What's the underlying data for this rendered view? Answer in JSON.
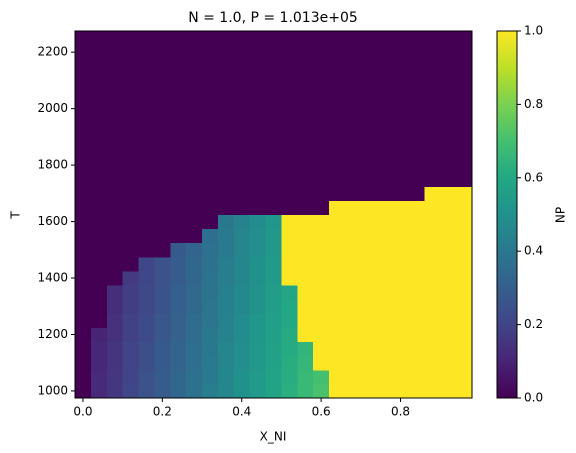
{
  "chart_data": {
    "type": "heatmap",
    "title": "N = 1.0, P = 1.013e+05",
    "x_label": "X_NI",
    "y_label": "T",
    "colorbar_label": "NP",
    "colormap": "viridis",
    "x": [
      0,
      0.04,
      0.08,
      0.12,
      0.16,
      0.2,
      0.24,
      0.28,
      0.32,
      0.36,
      0.4,
      0.44,
      0.48,
      0.52,
      0.56,
      0.6,
      0.64,
      0.68,
      0.72,
      0.76,
      0.8,
      0.84,
      0.88,
      0.92,
      0.96
    ],
    "y": [
      1000,
      1050,
      1100,
      1150,
      1200,
      1250,
      1300,
      1350,
      1400,
      1450,
      1500,
      1550,
      1600,
      1650,
      1700,
      1750,
      1800,
      1850,
      1900,
      1950,
      2000,
      2050,
      2100,
      2150,
      2200,
      2250
    ],
    "z": [
      [
        0,
        0.12,
        0.16,
        0.21,
        0.25,
        0.29,
        0.33,
        0.37,
        0.42,
        0.46,
        0.5,
        0.54,
        0.58,
        0.63,
        0.67,
        0.71,
        1,
        1,
        1,
        1,
        1,
        1,
        1,
        1,
        1
      ],
      [
        0,
        0.12,
        0.16,
        0.2,
        0.25,
        0.29,
        0.33,
        0.37,
        0.41,
        0.46,
        0.5,
        0.54,
        0.58,
        0.62,
        0.67,
        0.7,
        1,
        1,
        1,
        1,
        1,
        1,
        1,
        1,
        1
      ],
      [
        0,
        0.11,
        0.15,
        0.2,
        0.24,
        0.28,
        0.32,
        0.36,
        0.41,
        0.45,
        0.49,
        0.53,
        0.57,
        0.62,
        0.66,
        1,
        1,
        1,
        1,
        1,
        1,
        1,
        1,
        1,
        1
      ],
      [
        0,
        0.11,
        0.15,
        0.2,
        0.24,
        0.28,
        0.32,
        0.36,
        0.4,
        0.45,
        0.49,
        0.53,
        0.57,
        0.61,
        0.65,
        1,
        1,
        1,
        1,
        1,
        1,
        1,
        1,
        1,
        1
      ],
      [
        0,
        0.1,
        0.14,
        0.19,
        0.23,
        0.27,
        0.31,
        0.35,
        0.4,
        0.44,
        0.48,
        0.52,
        0.56,
        0.61,
        1,
        1,
        1,
        1,
        1,
        1,
        1,
        1,
        1,
        1,
        1
      ],
      [
        0,
        0,
        0.14,
        0.19,
        0.23,
        0.27,
        0.31,
        0.35,
        0.39,
        0.44,
        0.48,
        0.52,
        0.56,
        0.6,
        1,
        1,
        1,
        1,
        1,
        1,
        1,
        1,
        1,
        1,
        1
      ],
      [
        0,
        0,
        0.13,
        0.18,
        0.22,
        0.26,
        0.3,
        0.34,
        0.39,
        0.43,
        0.47,
        0.51,
        0.55,
        0.6,
        1,
        1,
        1,
        1,
        1,
        1,
        1,
        1,
        1,
        1,
        1
      ],
      [
        0,
        0,
        0.13,
        0.18,
        0.22,
        0.26,
        0.3,
        0.34,
        0.38,
        0.43,
        0.47,
        0.51,
        0.55,
        0.59,
        1,
        1,
        1,
        1,
        1,
        1,
        1,
        1,
        1,
        1,
        1
      ],
      [
        0,
        0,
        0,
        0.17,
        0.21,
        0.25,
        0.29,
        0.33,
        0.38,
        0.42,
        0.46,
        0.5,
        0.54,
        1,
        1,
        1,
        1,
        1,
        1,
        1,
        1,
        1,
        1,
        1,
        1
      ],
      [
        0,
        0,
        0,
        0,
        0.21,
        0.25,
        0.29,
        0.33,
        0.37,
        0.42,
        0.46,
        0.5,
        0.54,
        1,
        1,
        1,
        1,
        1,
        1,
        1,
        1,
        1,
        1,
        1,
        1
      ],
      [
        0,
        0,
        0,
        0,
        0,
        0,
        0.28,
        0.32,
        0.37,
        0.41,
        0.45,
        0.49,
        0.53,
        1,
        1,
        1,
        1,
        1,
        1,
        1,
        1,
        1,
        1,
        1,
        1
      ],
      [
        0,
        0,
        0,
        0,
        0,
        0,
        0,
        0,
        0.36,
        0.41,
        0.45,
        0.49,
        0.53,
        1,
        1,
        1,
        1,
        1,
        1,
        1,
        1,
        1,
        1,
        1,
        1
      ],
      [
        0,
        0,
        0,
        0,
        0,
        0,
        0,
        0,
        0,
        0.4,
        0.44,
        0.48,
        0.52,
        1,
        1,
        1,
        1,
        1,
        1,
        1,
        1,
        1,
        1,
        1,
        1
      ],
      [
        0,
        0,
        0,
        0,
        0,
        0,
        0,
        0,
        0,
        0,
        0,
        0,
        0,
        0,
        0,
        0,
        1,
        1,
        1,
        1,
        1,
        1,
        1,
        1,
        1
      ],
      [
        0,
        0,
        0,
        0,
        0,
        0,
        0,
        0,
        0,
        0,
        0,
        0,
        0,
        0,
        0,
        0,
        0,
        0,
        0,
        0,
        0,
        0,
        1,
        1,
        1
      ],
      [
        0,
        0,
        0,
        0,
        0,
        0,
        0,
        0,
        0,
        0,
        0,
        0,
        0,
        0,
        0,
        0,
        0,
        0,
        0,
        0,
        0,
        0,
        0,
        0,
        0
      ],
      [
        0,
        0,
        0,
        0,
        0,
        0,
        0,
        0,
        0,
        0,
        0,
        0,
        0,
        0,
        0,
        0,
        0,
        0,
        0,
        0,
        0,
        0,
        0,
        0,
        0
      ],
      [
        0,
        0,
        0,
        0,
        0,
        0,
        0,
        0,
        0,
        0,
        0,
        0,
        0,
        0,
        0,
        0,
        0,
        0,
        0,
        0,
        0,
        0,
        0,
        0,
        0
      ],
      [
        0,
        0,
        0,
        0,
        0,
        0,
        0,
        0,
        0,
        0,
        0,
        0,
        0,
        0,
        0,
        0,
        0,
        0,
        0,
        0,
        0,
        0,
        0,
        0,
        0
      ],
      [
        0,
        0,
        0,
        0,
        0,
        0,
        0,
        0,
        0,
        0,
        0,
        0,
        0,
        0,
        0,
        0,
        0,
        0,
        0,
        0,
        0,
        0,
        0,
        0,
        0
      ],
      [
        0,
        0,
        0,
        0,
        0,
        0,
        0,
        0,
        0,
        0,
        0,
        0,
        0,
        0,
        0,
        0,
        0,
        0,
        0,
        0,
        0,
        0,
        0,
        0,
        0
      ],
      [
        0,
        0,
        0,
        0,
        0,
        0,
        0,
        0,
        0,
        0,
        0,
        0,
        0,
        0,
        0,
        0,
        0,
        0,
        0,
        0,
        0,
        0,
        0,
        0,
        0
      ],
      [
        0,
        0,
        0,
        0,
        0,
        0,
        0,
        0,
        0,
        0,
        0,
        0,
        0,
        0,
        0,
        0,
        0,
        0,
        0,
        0,
        0,
        0,
        0,
        0,
        0
      ],
      [
        0,
        0,
        0,
        0,
        0,
        0,
        0,
        0,
        0,
        0,
        0,
        0,
        0,
        0,
        0,
        0,
        0,
        0,
        0,
        0,
        0,
        0,
        0,
        0,
        0
      ],
      [
        0,
        0,
        0,
        0,
        0,
        0,
        0,
        0,
        0,
        0,
        0,
        0,
        0,
        0,
        0,
        0,
        0,
        0,
        0,
        0,
        0,
        0,
        0,
        0,
        0
      ],
      [
        0,
        0,
        0,
        0,
        0,
        0,
        0,
        0,
        0,
        0,
        0,
        0,
        0,
        0,
        0,
        0,
        0,
        0,
        0,
        0,
        0,
        0,
        0,
        0,
        0
      ]
    ],
    "xlim": [
      -0.02,
      0.98
    ],
    "ylim": [
      975,
      2275
    ],
    "xticks": [
      {
        "value": 0,
        "label": "0.0"
      },
      {
        "value": 0.2,
        "label": "0.2"
      },
      {
        "value": 0.4,
        "label": "0.4"
      },
      {
        "value": 0.6,
        "label": "0.6"
      },
      {
        "value": 0.8,
        "label": "0.8"
      }
    ],
    "yticks": [
      1000,
      1200,
      1400,
      1600,
      1800,
      2000,
      2200
    ],
    "clim": [
      0,
      1
    ],
    "cticks": [
      {
        "value": 0,
        "label": "0.0"
      },
      {
        "value": 0.2,
        "label": "0.2"
      },
      {
        "value": 0.4,
        "label": "0.4"
      },
      {
        "value": 0.6,
        "label": "0.6"
      },
      {
        "value": 0.8,
        "label": "0.8"
      },
      {
        "value": 1,
        "label": "1.0"
      }
    ]
  }
}
